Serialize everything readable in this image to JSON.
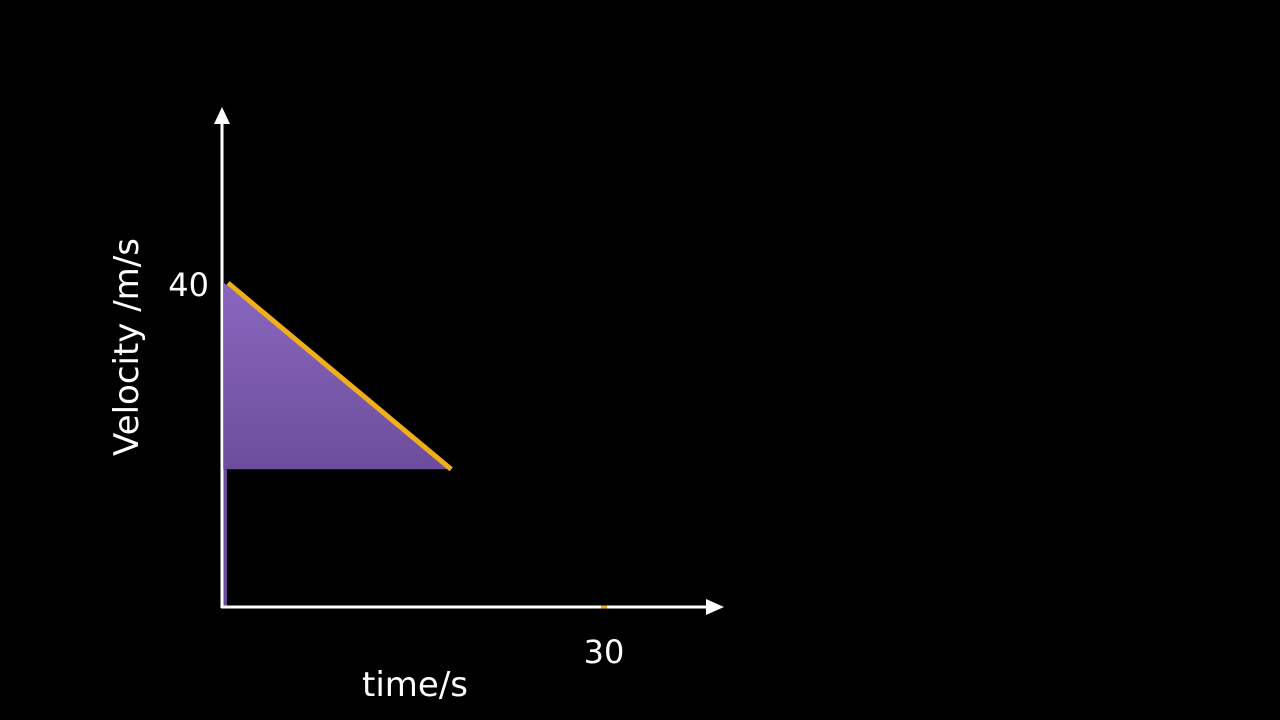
{
  "chart_data": {
    "type": "area",
    "xlabel": "time/s",
    "ylabel": "Velocity /m/s",
    "x_ticks": [
      30
    ],
    "y_ticks": [
      40
    ],
    "x_tick_labels": [
      "30"
    ],
    "y_tick_labels": [
      "40"
    ],
    "xlim": [
      0,
      40
    ],
    "ylim": [
      0,
      60
    ],
    "series": [
      {
        "points": [
          [
            0,
            40
          ],
          [
            18,
            17
          ]
        ],
        "fill_floor_y": 17
      }
    ],
    "grid": false,
    "legend": "none"
  },
  "colors": {
    "background": "#000000",
    "axis": "#ffffff",
    "line": "#f0b01c",
    "fill_top": "#8a67bf",
    "fill_bottom": "#6c4d9b",
    "label": "#ffffff"
  }
}
